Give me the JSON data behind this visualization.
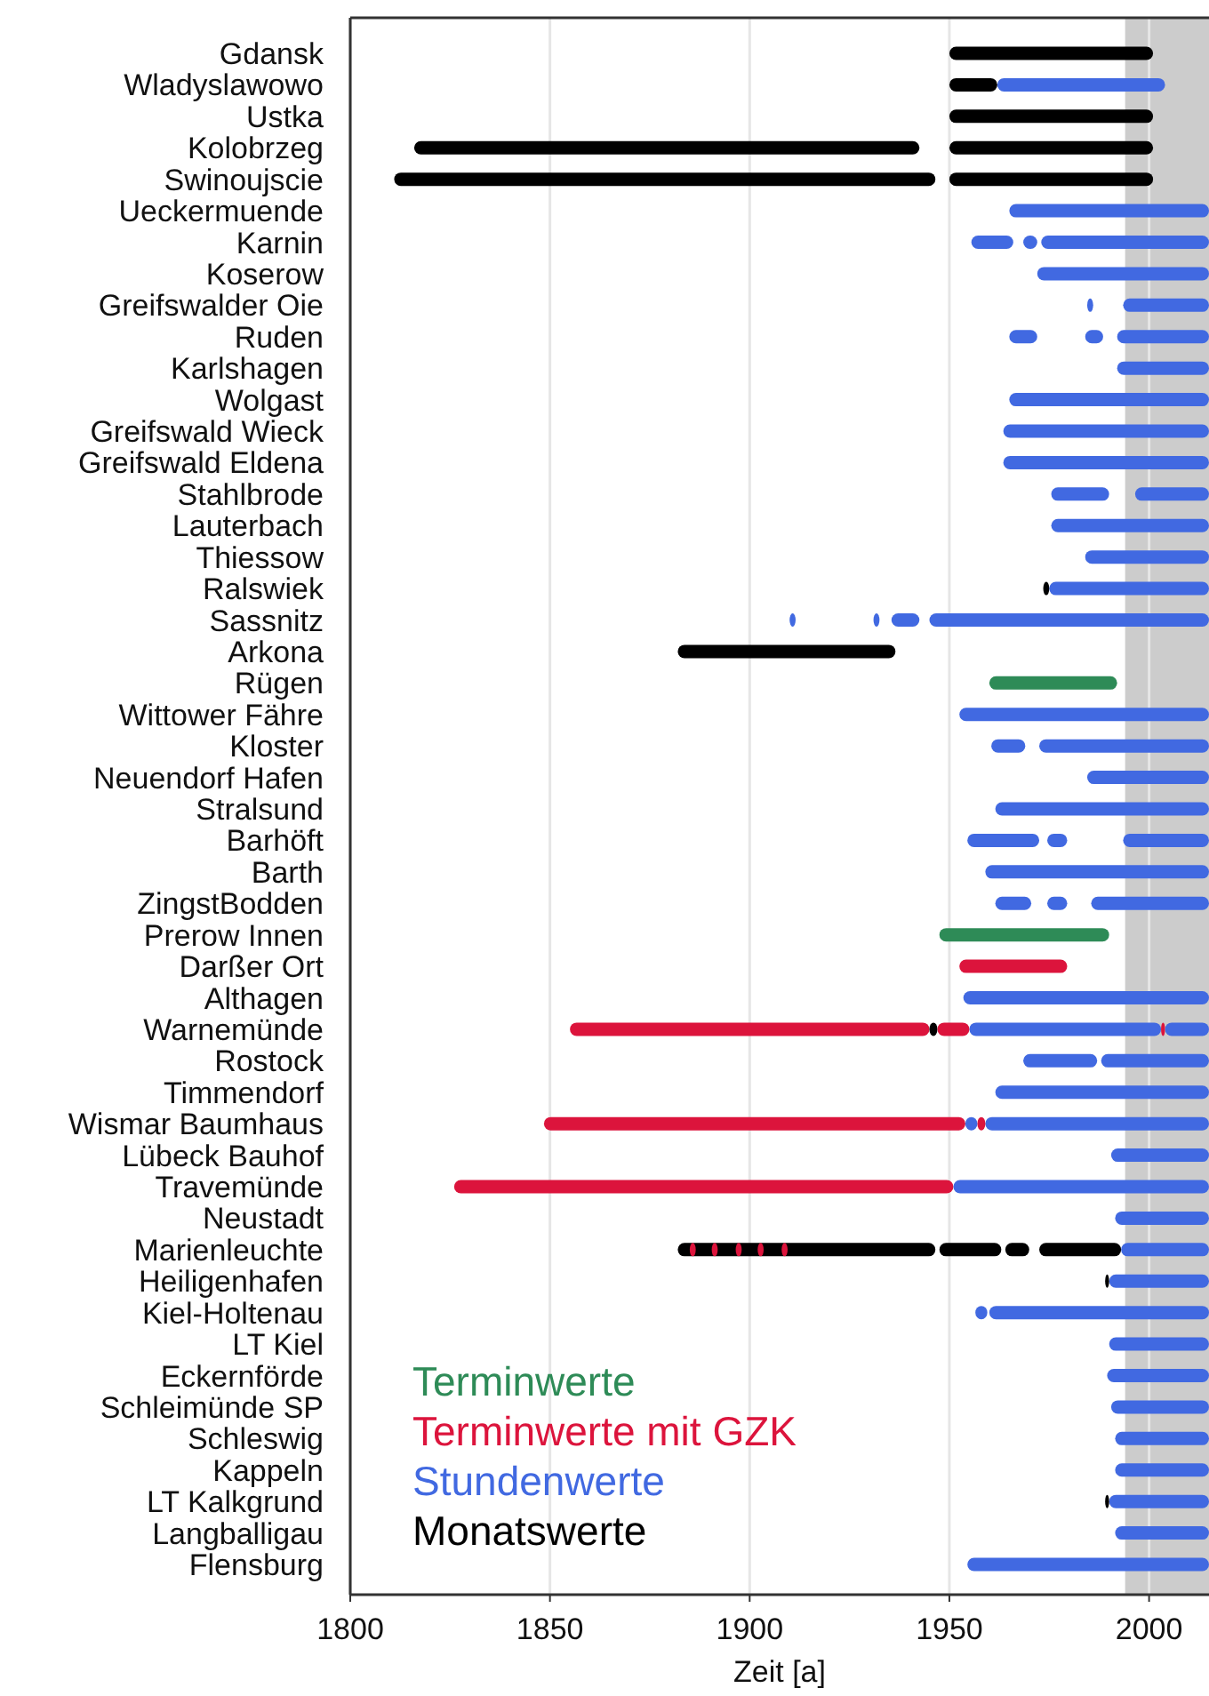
{
  "chart_data": {
    "type": "bar",
    "orientation": "horizontal",
    "xlabel": "Zeit [a]",
    "categories": [
      "Gdansk",
      "Wladyslawowo",
      "Ustka",
      "Kolobrzeg",
      "Swinoujscie",
      "Ueckermuende",
      "Karnin",
      "Koserow",
      "Greifswalder Oie",
      "Ruden",
      "Karlshagen",
      "Wolgast",
      "Greifswald Wieck",
      "Greifswald Eldena",
      "Stahlbrode",
      "Lauterbach",
      "Thiessow",
      "Ralswiek",
      "Sassnitz",
      "Arkona",
      "Rügen",
      "Wittower Fähre",
      "Kloster",
      "Neuendorf Hafen",
      "Stralsund",
      "Barhöft",
      "Barth",
      "ZingstBodden",
      "Prerow Innen",
      "Darßer Ort",
      "Althagen",
      "Warnemünde",
      "Rostock",
      "Timmendorf",
      "Wismar Baumhaus",
      "Lübeck Bauhof",
      "Travemünde",
      "Neustadt",
      "Marienleuchte",
      "Heiligenhafen",
      "Kiel-Holtenau",
      "LT Kiel",
      "Eckernförde",
      "Schleimünde SP",
      "Schleswig",
      "Kappeln",
      "LT Kalkgrund",
      "Langballigau",
      "Flensburg"
    ],
    "series": [
      {
        "name": "Terminwerte",
        "color": "#2e8b57",
        "base": [
          null,
          null,
          null,
          null,
          null,
          null,
          null,
          null,
          null,
          null,
          null,
          null,
          null,
          null,
          null,
          null,
          null,
          null,
          null,
          null,
          1960,
          null,
          null,
          null,
          null,
          null,
          null,
          null,
          1947.5,
          null,
          null,
          null,
          null,
          null,
          null,
          null,
          null,
          null,
          null,
          null,
          null,
          null,
          null,
          null,
          null,
          null,
          null,
          null,
          null
        ],
        "values": [
          null,
          null,
          null,
          null,
          null,
          null,
          null,
          null,
          null,
          null,
          null,
          null,
          null,
          null,
          null,
          null,
          null,
          null,
          null,
          null,
          32,
          null,
          null,
          null,
          null,
          null,
          null,
          null,
          42.5,
          null,
          null,
          null,
          null,
          null,
          null,
          null,
          null,
          null,
          null,
          null,
          null,
          null,
          null,
          null,
          null,
          null,
          null,
          null,
          null
        ]
      },
      {
        "name": "Terminwerte mit GZK",
        "color": "#dc143c",
        "base": [
          null,
          null,
          null,
          null,
          null,
          null,
          null,
          null,
          null,
          null,
          null,
          null,
          null,
          null,
          null,
          null,
          null,
          null,
          null,
          null,
          null,
          null,
          null,
          null,
          null,
          null,
          null,
          null,
          null,
          1952.5,
          null,
          1855,
          null,
          null,
          1848.5,
          null,
          1826,
          null,
          null,
          null,
          null,
          null,
          null,
          null,
          null,
          null,
          null,
          null,
          null
        ],
        "values": [
          null,
          null,
          null,
          null,
          null,
          null,
          null,
          null,
          null,
          null,
          null,
          null,
          null,
          null,
          null,
          null,
          null,
          null,
          null,
          null,
          null,
          null,
          null,
          null,
          null,
          null,
          null,
          null,
          null,
          27,
          null,
          90,
          null,
          null,
          105.5,
          null,
          125,
          null,
          null,
          null,
          null,
          null,
          null,
          null,
          null,
          null,
          null,
          null,
          null
        ]
      },
      {
        "name": "Stundenwerte",
        "color": "#4169e1",
        "base": [
          null,
          1962,
          null,
          null,
          null,
          1965,
          1973,
          1972,
          1993.5,
          1992,
          1992,
          1965,
          1963.5,
          1963.5,
          1996.5,
          1975.5,
          1984,
          1975,
          1945,
          null,
          null,
          1952.5,
          1972.5,
          1984.5,
          1961.5,
          1993.5,
          1959,
          1985.5,
          null,
          null,
          1953.5,
          1955,
          1988,
          1961.5,
          1959,
          1990.5,
          1951,
          1991.5,
          1993,
          1990,
          1960,
          1990,
          1989.5,
          1990.5,
          1991.5,
          1991.5,
          1990,
          1991.5,
          1954.5
        ],
        "values": [
          null,
          42,
          null,
          null,
          null,
          50,
          42,
          43,
          21.5,
          23,
          23,
          50,
          51.5,
          51.5,
          18.5,
          39.5,
          31,
          40,
          70,
          null,
          null,
          62.5,
          42.5,
          30.5,
          53.5,
          21.5,
          56,
          29.5,
          null,
          null,
          61.5,
          48,
          27,
          53.5,
          56,
          24.5,
          64,
          23.5,
          22,
          25,
          55,
          25,
          25.5,
          24.5,
          23.5,
          23.5,
          25,
          23.5,
          60.5
        ]
      },
      {
        "name": "Monatswerte",
        "color": "#000000",
        "base": [
          1950,
          1950,
          1950,
          1950,
          1950,
          null,
          null,
          null,
          null,
          null,
          null,
          null,
          null,
          null,
          null,
          null,
          null,
          1973.5,
          null,
          1882,
          null,
          null,
          null,
          null,
          null,
          null,
          null,
          null,
          null,
          null,
          null,
          1945,
          null,
          null,
          null,
          null,
          null,
          null,
          1882,
          1989,
          null,
          null,
          null,
          null,
          null,
          null,
          1989,
          null,
          null
        ],
        "values": [
          51,
          12,
          51,
          51,
          51,
          null,
          null,
          null,
          null,
          null,
          null,
          null,
          null,
          null,
          null,
          null,
          null,
          1.5,
          null,
          54.5,
          null,
          null,
          null,
          null,
          null,
          null,
          null,
          null,
          null,
          null,
          null,
          2,
          null,
          null,
          null,
          null,
          null,
          null,
          64.5,
          1,
          null,
          null,
          null,
          null,
          null,
          null,
          1,
          null,
          null
        ]
      },
      {
        "color": "#000000",
        "base": [
          null,
          null,
          null,
          1816,
          1811,
          null,
          null,
          null,
          null,
          null,
          null,
          null,
          null,
          null,
          null,
          null,
          null,
          null,
          null,
          null,
          null,
          null,
          null,
          null,
          null,
          null,
          null,
          null,
          null,
          null,
          null,
          null,
          null,
          null,
          null,
          null,
          null,
          null,
          1947.5,
          null,
          null,
          null,
          null,
          null,
          null,
          null,
          null,
          null,
          null
        ],
        "values": [
          null,
          null,
          null,
          126.5,
          135.5,
          null,
          null,
          null,
          null,
          null,
          null,
          null,
          null,
          null,
          null,
          null,
          null,
          null,
          null,
          null,
          null,
          null,
          null,
          null,
          null,
          null,
          null,
          null,
          null,
          null,
          null,
          null,
          null,
          null,
          null,
          null,
          null,
          null,
          15.5,
          null,
          null,
          null,
          null,
          null,
          null,
          null,
          null,
          null,
          null
        ]
      },
      {
        "color": "#000000",
        "base": [
          null,
          null,
          null,
          null,
          null,
          null,
          null,
          null,
          null,
          null,
          null,
          null,
          null,
          null,
          null,
          null,
          null,
          null,
          null,
          null,
          null,
          null,
          null,
          null,
          null,
          null,
          null,
          null,
          null,
          null,
          null,
          null,
          null,
          null,
          null,
          null,
          null,
          null,
          1964,
          null,
          null,
          null,
          null,
          null,
          null,
          null,
          null,
          null,
          null
        ],
        "values": [
          null,
          null,
          null,
          null,
          null,
          null,
          null,
          null,
          null,
          null,
          null,
          null,
          null,
          null,
          null,
          null,
          null,
          null,
          null,
          null,
          null,
          null,
          null,
          null,
          null,
          null,
          null,
          null,
          null,
          null,
          null,
          null,
          null,
          null,
          null,
          null,
          null,
          null,
          6,
          null,
          null,
          null,
          null,
          null,
          null,
          null,
          null,
          null,
          null
        ]
      },
      {
        "color": "#000000",
        "base": [
          null,
          null,
          null,
          null,
          null,
          null,
          null,
          null,
          null,
          null,
          null,
          null,
          null,
          null,
          null,
          null,
          null,
          null,
          null,
          null,
          null,
          null,
          null,
          null,
          null,
          null,
          null,
          null,
          null,
          null,
          null,
          null,
          null,
          null,
          null,
          null,
          null,
          null,
          1972.5,
          null,
          null,
          null,
          null,
          null,
          null,
          null,
          null,
          null,
          null
        ],
        "values": [
          null,
          null,
          null,
          null,
          null,
          null,
          null,
          null,
          null,
          null,
          null,
          null,
          null,
          null,
          null,
          null,
          null,
          null,
          null,
          null,
          null,
          null,
          null,
          null,
          null,
          null,
          null,
          null,
          null,
          null,
          null,
          null,
          null,
          null,
          null,
          null,
          null,
          null,
          20.5,
          null,
          null,
          null,
          null,
          null,
          null,
          null,
          null,
          null,
          null
        ]
      },
      {
        "color": "#dc143c",
        "base": [
          null,
          null,
          null,
          null,
          null,
          null,
          null,
          null,
          null,
          null,
          null,
          null,
          null,
          null,
          null,
          null,
          null,
          null,
          null,
          null,
          null,
          null,
          null,
          null,
          null,
          null,
          null,
          null,
          null,
          null,
          null,
          1947,
          null,
          null,
          1957,
          null,
          null,
          null,
          1885,
          null,
          null,
          null,
          null,
          null,
          null,
          null,
          null,
          null,
          null
        ],
        "values": [
          null,
          null,
          null,
          null,
          null,
          null,
          null,
          null,
          null,
          null,
          null,
          null,
          null,
          null,
          null,
          null,
          null,
          null,
          null,
          null,
          null,
          null,
          null,
          null,
          null,
          null,
          null,
          null,
          null,
          null,
          null,
          8,
          null,
          null,
          2,
          null,
          null,
          null,
          1.5,
          null,
          null,
          null,
          null,
          null,
          null,
          null,
          null,
          null,
          null
        ]
      },
      {
        "color": "#dc143c",
        "base": [
          null,
          null,
          null,
          null,
          null,
          null,
          null,
          null,
          null,
          null,
          null,
          null,
          null,
          null,
          null,
          null,
          null,
          null,
          null,
          null,
          null,
          null,
          null,
          null,
          null,
          null,
          null,
          null,
          null,
          null,
          null,
          2003,
          null,
          null,
          null,
          null,
          null,
          null,
          1890.5,
          null,
          null,
          null,
          null,
          null,
          null,
          null,
          null,
          null,
          null
        ],
        "values": [
          null,
          null,
          null,
          null,
          null,
          null,
          null,
          null,
          null,
          null,
          null,
          null,
          null,
          null,
          null,
          null,
          null,
          null,
          null,
          null,
          null,
          null,
          null,
          null,
          null,
          null,
          null,
          null,
          null,
          null,
          null,
          1,
          null,
          null,
          null,
          null,
          null,
          null,
          1.5,
          null,
          null,
          null,
          null,
          null,
          null,
          null,
          null,
          null,
          null
        ]
      },
      {
        "color": "#dc143c",
        "base": [
          null,
          null,
          null,
          null,
          null,
          null,
          null,
          null,
          null,
          null,
          null,
          null,
          null,
          null,
          null,
          null,
          null,
          null,
          null,
          null,
          null,
          null,
          null,
          null,
          null,
          null,
          null,
          null,
          null,
          null,
          null,
          null,
          null,
          null,
          null,
          null,
          null,
          null,
          1896.5,
          null,
          null,
          null,
          null,
          null,
          null,
          null,
          null,
          null,
          null
        ],
        "values": [
          null,
          null,
          null,
          null,
          null,
          null,
          null,
          null,
          null,
          null,
          null,
          null,
          null,
          null,
          null,
          null,
          null,
          null,
          null,
          null,
          null,
          null,
          null,
          null,
          null,
          null,
          null,
          null,
          null,
          null,
          null,
          null,
          null,
          null,
          null,
          null,
          null,
          null,
          1.5,
          null,
          null,
          null,
          null,
          null,
          null,
          null,
          null,
          null,
          null
        ]
      },
      {
        "color": "#dc143c",
        "base": [
          null,
          null,
          null,
          null,
          null,
          null,
          null,
          null,
          null,
          null,
          null,
          null,
          null,
          null,
          null,
          null,
          null,
          null,
          null,
          null,
          null,
          null,
          null,
          null,
          null,
          null,
          null,
          null,
          null,
          null,
          null,
          null,
          null,
          null,
          null,
          null,
          null,
          null,
          1902,
          null,
          null,
          null,
          null,
          null,
          null,
          null,
          null,
          null,
          null
        ],
        "values": [
          null,
          null,
          null,
          null,
          null,
          null,
          null,
          null,
          null,
          null,
          null,
          null,
          null,
          null,
          null,
          null,
          null,
          null,
          null,
          null,
          null,
          null,
          null,
          null,
          null,
          null,
          null,
          null,
          null,
          null,
          null,
          null,
          null,
          null,
          null,
          null,
          null,
          null,
          1.5,
          null,
          null,
          null,
          null,
          null,
          null,
          null,
          null,
          null,
          null
        ]
      },
      {
        "color": "#dc143c",
        "base": [
          null,
          null,
          null,
          null,
          null,
          null,
          null,
          null,
          null,
          null,
          null,
          null,
          null,
          null,
          null,
          null,
          null,
          null,
          null,
          null,
          null,
          null,
          null,
          null,
          null,
          null,
          null,
          null,
          null,
          null,
          null,
          null,
          null,
          null,
          null,
          null,
          null,
          null,
          1908,
          null,
          null,
          null,
          null,
          null,
          null,
          null,
          null,
          null,
          null
        ],
        "values": [
          null,
          null,
          null,
          null,
          null,
          null,
          null,
          null,
          null,
          null,
          null,
          null,
          null,
          null,
          null,
          null,
          null,
          null,
          null,
          null,
          null,
          null,
          null,
          null,
          null,
          null,
          null,
          null,
          null,
          null,
          null,
          null,
          null,
          null,
          null,
          null,
          null,
          null,
          1.5,
          null,
          null,
          null,
          null,
          null,
          null,
          null,
          null,
          null,
          null
        ]
      },
      {
        "color": "#4169e1",
        "base": [
          null,
          null,
          null,
          null,
          null,
          null,
          1968.5,
          null,
          1984.5,
          1984,
          null,
          null,
          null,
          null,
          1975.5,
          null,
          null,
          null,
          1935.5,
          null,
          null,
          null,
          1960.5,
          null,
          null,
          1974.5,
          null,
          1974.5,
          null,
          null,
          null,
          2004,
          1968.5,
          null,
          1954,
          null,
          null,
          null,
          null,
          null,
          1956.5,
          null,
          null,
          null,
          null,
          null,
          null,
          null,
          null
        ],
        "values": [
          null,
          null,
          null,
          null,
          null,
          null,
          3.5,
          null,
          1.5,
          4.5,
          null,
          null,
          null,
          null,
          14.5,
          null,
          null,
          null,
          7,
          null,
          null,
          null,
          8.5,
          null,
          null,
          5,
          null,
          5,
          null,
          null,
          null,
          11,
          18.5,
          null,
          3,
          null,
          null,
          null,
          null,
          null,
          3,
          null,
          null,
          null,
          null,
          null,
          null,
          null,
          null
        ]
      },
      {
        "color": "#4169e1",
        "base": [
          null,
          null,
          null,
          null,
          null,
          null,
          1955.5,
          null,
          null,
          1965,
          null,
          null,
          null,
          null,
          null,
          null,
          null,
          null,
          1931,
          null,
          null,
          null,
          null,
          null,
          null,
          1954.5,
          null,
          1961.5,
          null,
          null,
          null,
          null,
          null,
          null,
          null,
          null,
          null,
          null,
          null,
          null,
          null,
          null,
          null,
          null,
          null,
          null,
          null,
          null,
          null
        ],
        "values": [
          null,
          null,
          null,
          null,
          null,
          null,
          10.5,
          null,
          null,
          7,
          null,
          null,
          null,
          null,
          null,
          null,
          null,
          null,
          1.5,
          null,
          null,
          null,
          null,
          null,
          null,
          18,
          null,
          9,
          null,
          null,
          null,
          null,
          null,
          null,
          null,
          null,
          null,
          null,
          null,
          null,
          null,
          null,
          null,
          null,
          null,
          null,
          null,
          null,
          null
        ]
      },
      {
        "color": "#4169e1",
        "base": [
          null,
          null,
          null,
          null,
          null,
          null,
          null,
          null,
          null,
          null,
          null,
          null,
          null,
          null,
          null,
          null,
          null,
          null,
          1910,
          null,
          null,
          null,
          null,
          null,
          null,
          null,
          null,
          null,
          null,
          null,
          null,
          null,
          null,
          null,
          null,
          null,
          null,
          null,
          null,
          null,
          null,
          null,
          null,
          null,
          null,
          null,
          null,
          null,
          null
        ],
        "values": [
          null,
          null,
          null,
          null,
          null,
          null,
          null,
          null,
          null,
          null,
          null,
          null,
          null,
          null,
          null,
          null,
          null,
          null,
          1.5,
          null,
          null,
          null,
          null,
          null,
          null,
          null,
          null,
          null,
          null,
          null,
          null,
          null,
          null,
          null,
          null,
          null,
          null,
          null,
          null,
          null,
          null,
          null,
          null,
          null,
          null,
          null,
          null,
          null,
          null
        ]
      }
    ],
    "xlim": [
      1800,
      2015
    ],
    "xticks": [
      1800,
      1850,
      1900,
      1950,
      2000
    ],
    "grid": "x",
    "legend": "bottom left",
    "bands": [
      {
        "axis": "x",
        "from": 1994,
        "to": 2015,
        "color": "#cccccc"
      }
    ]
  }
}
